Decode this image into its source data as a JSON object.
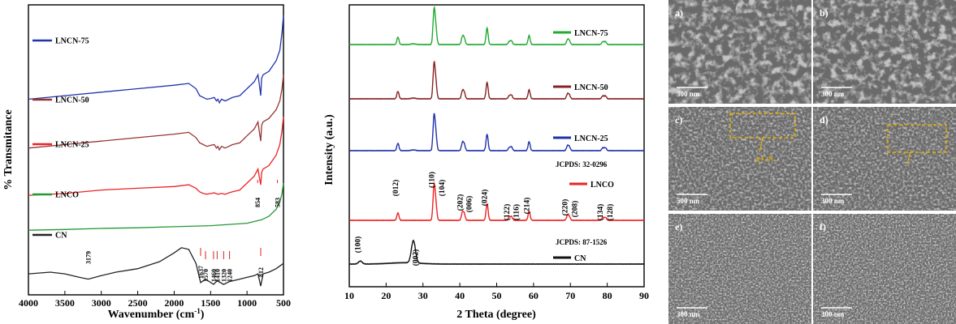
{
  "chart_data": [
    {
      "type": "line",
      "panel": "FTIR",
      "xlabel": "Wavenumber (cm",
      "xlabel_sup": "-1",
      "xlabel_end": ")",
      "ylabel": "% Transmitance",
      "xlim": [
        4000,
        500
      ],
      "xticks": [
        4000,
        3500,
        3000,
        2500,
        2000,
        1500,
        1000,
        500
      ],
      "series": [
        {
          "name": "LNCN-75",
          "color": "#2233aa",
          "x": [
            4000,
            3500,
            3000,
            2500,
            2000,
            1800,
            1700,
            1650,
            1600,
            1550,
            1500,
            1450,
            1420,
            1400,
            1380,
            1350,
            1300,
            1250,
            1200,
            1100,
            1000,
            900,
            850,
            830,
            812,
            800,
            780,
            700,
            600,
            550,
            520,
            500
          ],
          "y": [
            5.6,
            5.7,
            5.8,
            5.9,
            6.0,
            6.05,
            5.9,
            5.7,
            5.65,
            5.6,
            5.62,
            5.65,
            5.55,
            5.6,
            5.5,
            5.6,
            5.55,
            5.6,
            5.65,
            5.7,
            5.9,
            6.1,
            6.3,
            6.0,
            5.7,
            6.2,
            6.3,
            6.4,
            6.7,
            7.0,
            7.5,
            8.0
          ]
        },
        {
          "name": "LNCN-50",
          "color": "#993333",
          "x": [
            4000,
            3500,
            3000,
            2500,
            2000,
            1800,
            1700,
            1650,
            1600,
            1550,
            1500,
            1450,
            1420,
            1400,
            1380,
            1350,
            1300,
            1250,
            1200,
            1100,
            1000,
            900,
            850,
            830,
            812,
            800,
            780,
            700,
            600,
            550,
            520,
            500
          ],
          "y": [
            4.2,
            4.3,
            4.4,
            4.5,
            4.6,
            4.65,
            4.5,
            4.35,
            4.3,
            4.25,
            4.28,
            4.3,
            4.2,
            4.25,
            4.15,
            4.25,
            4.2,
            4.25,
            4.3,
            4.35,
            4.55,
            4.75,
            4.95,
            4.65,
            4.4,
            4.85,
            4.95,
            5.05,
            5.3,
            5.55,
            5.9,
            6.3
          ]
        },
        {
          "name": "LNCN-25",
          "color": "#ee2222",
          "x": [
            4000,
            3500,
            3000,
            2500,
            2000,
            1800,
            1700,
            1650,
            1600,
            1550,
            1500,
            1450,
            1400,
            1350,
            1300,
            1250,
            1200,
            1100,
            1000,
            900,
            850,
            830,
            812,
            800,
            780,
            700,
            600,
            550,
            520,
            500
          ],
          "y": [
            2.85,
            2.9,
            3.0,
            3.05,
            3.1,
            3.15,
            3.05,
            2.95,
            2.9,
            2.88,
            2.9,
            2.92,
            2.88,
            2.9,
            2.88,
            2.92,
            2.95,
            3.0,
            3.2,
            3.4,
            3.6,
            3.35,
            3.15,
            3.5,
            3.6,
            3.7,
            4.0,
            4.3,
            4.7,
            5.1
          ]
        },
        {
          "name": "LNCO",
          "color": "#229933",
          "x": [
            4000,
            3500,
            3000,
            2500,
            2000,
            1500,
            1000,
            800,
            700,
            600,
            550,
            520,
            500
          ],
          "y": [
            1.85,
            1.87,
            1.9,
            1.92,
            1.95,
            1.98,
            2.05,
            2.15,
            2.25,
            2.45,
            2.65,
            2.9,
            3.2
          ]
        },
        {
          "name": "CN",
          "color": "#222222",
          "x": [
            4000,
            3700,
            3500,
            3300,
            3179,
            3000,
            2800,
            2500,
            2200,
            2000,
            1900,
            1800,
            1700,
            1637,
            1570,
            1460,
            1410,
            1320,
            1240,
            1100,
            1000,
            900,
            850,
            812,
            780,
            700,
            600,
            500
          ],
          "y": [
            0.6,
            0.65,
            0.6,
            0.5,
            0.45,
            0.55,
            0.65,
            0.75,
            0.95,
            1.2,
            1.35,
            1.3,
            0.9,
            0.35,
            0.45,
            0.3,
            0.4,
            0.3,
            0.38,
            0.45,
            0.5,
            0.55,
            0.6,
            0.25,
            0.6,
            0.65,
            0.75,
            0.9
          ]
        }
      ],
      "annotations": [
        "3179",
        "1637",
        "1570",
        "1460",
        "1410",
        "1320",
        "1240",
        "812",
        "854",
        "583"
      ]
    },
    {
      "type": "line",
      "panel": "XRD",
      "xlabel": "2 Theta (degree)",
      "ylabel": "Intensity (a.u.)",
      "xlim": [
        10,
        90
      ],
      "xticks": [
        10,
        20,
        30,
        40,
        50,
        60,
        70,
        80,
        90
      ],
      "peaks_LNO": [
        23.2,
        33.0,
        33.5,
        40.7,
        41.2,
        47.4,
        53.4,
        54.0,
        58.8,
        69.2,
        69.7,
        78.8,
        79.5
      ],
      "peaks_CN": [
        13.0,
        27.4
      ],
      "series": [
        {
          "name": "LNCN-75",
          "color": "#22aa33"
        },
        {
          "name": "LNCN-50",
          "color": "#882222"
        },
        {
          "name": "LNCN-25",
          "color": "#2233aa"
        },
        {
          "name": "LNCO",
          "color": "#ee2222"
        },
        {
          "name": "CN",
          "color": "#111111"
        }
      ],
      "hkl_labels": [
        "(012)",
        "(110)",
        "(104)",
        "(202)",
        "(006)",
        "(024)",
        "(122)",
        "(116)",
        "(214)",
        "(220)",
        "(208)",
        "(134)",
        "(128)",
        "(100)",
        "(002)"
      ],
      "jcpds": [
        "JCPDS: 32-0296",
        "JCPDS: 87-1526"
      ]
    }
  ],
  "sem": {
    "panels": [
      {
        "label": "a)",
        "scale": "300 nm"
      },
      {
        "label": "b)",
        "scale": "300 nm"
      },
      {
        "label": "c)",
        "scale": "500 nm",
        "note": "g-C₃N₄"
      },
      {
        "label": "d)",
        "scale": "300 nm"
      },
      {
        "label": "e)",
        "scale": "300 nm"
      },
      {
        "label": "f)",
        "scale": "300 nm"
      }
    ]
  }
}
